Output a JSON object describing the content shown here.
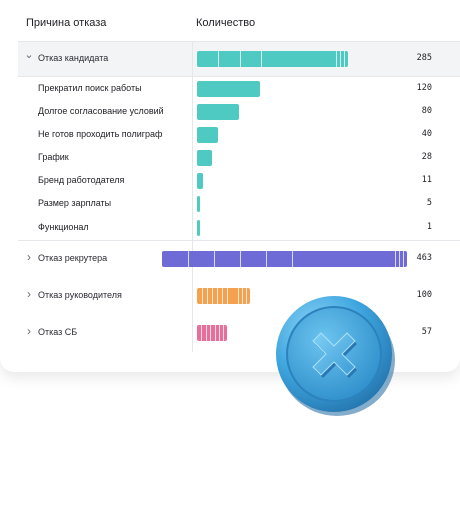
{
  "headers": {
    "reason": "Причина отказа",
    "count": "Количество"
  },
  "colors": {
    "teal": "#4fcac2",
    "purple": "#6e6bd6",
    "orange": "#f4a24f",
    "pink": "#e76f9c",
    "badge": "#3fa6df"
  },
  "rows": [
    {
      "label": "Отказ кандидата",
      "value": "285",
      "amount": 285,
      "level": "group",
      "expanded": true,
      "color": "teal",
      "segments": 7
    },
    {
      "label": "Прекратил поиск работы",
      "value": "120",
      "amount": 120,
      "level": "child",
      "color": "teal"
    },
    {
      "label": "Долгое согласование условий",
      "value": "80",
      "amount": 80,
      "level": "child",
      "color": "teal"
    },
    {
      "label": "Не готов проходить полиграф",
      "value": "40",
      "amount": 40,
      "level": "child",
      "color": "teal"
    },
    {
      "label": "График",
      "value": "28",
      "amount": 28,
      "level": "child",
      "color": "teal"
    },
    {
      "label": "Бренд работодателя",
      "value": "11",
      "amount": 11,
      "level": "child",
      "color": "teal"
    },
    {
      "label": "Размер зарплаты",
      "value": "5",
      "amount": 5,
      "level": "child",
      "color": "teal"
    },
    {
      "label": "Функционал",
      "value": "1",
      "amount": 1,
      "level": "child",
      "color": "teal"
    },
    {
      "label": "Отказ рекрутера",
      "value": "463",
      "amount": 463,
      "level": "group",
      "expanded": false,
      "color": "purple",
      "segments": 9
    },
    {
      "label": "Отказ руководителя",
      "value": "100",
      "amount": 100,
      "level": "group",
      "expanded": false,
      "color": "orange",
      "segments": 10
    },
    {
      "label": "Отказ СБ",
      "value": "57",
      "amount": 57,
      "level": "group",
      "expanded": false,
      "color": "pink",
      "segments": 7
    }
  ],
  "badge": {
    "icon": "close-x-icon"
  }
}
